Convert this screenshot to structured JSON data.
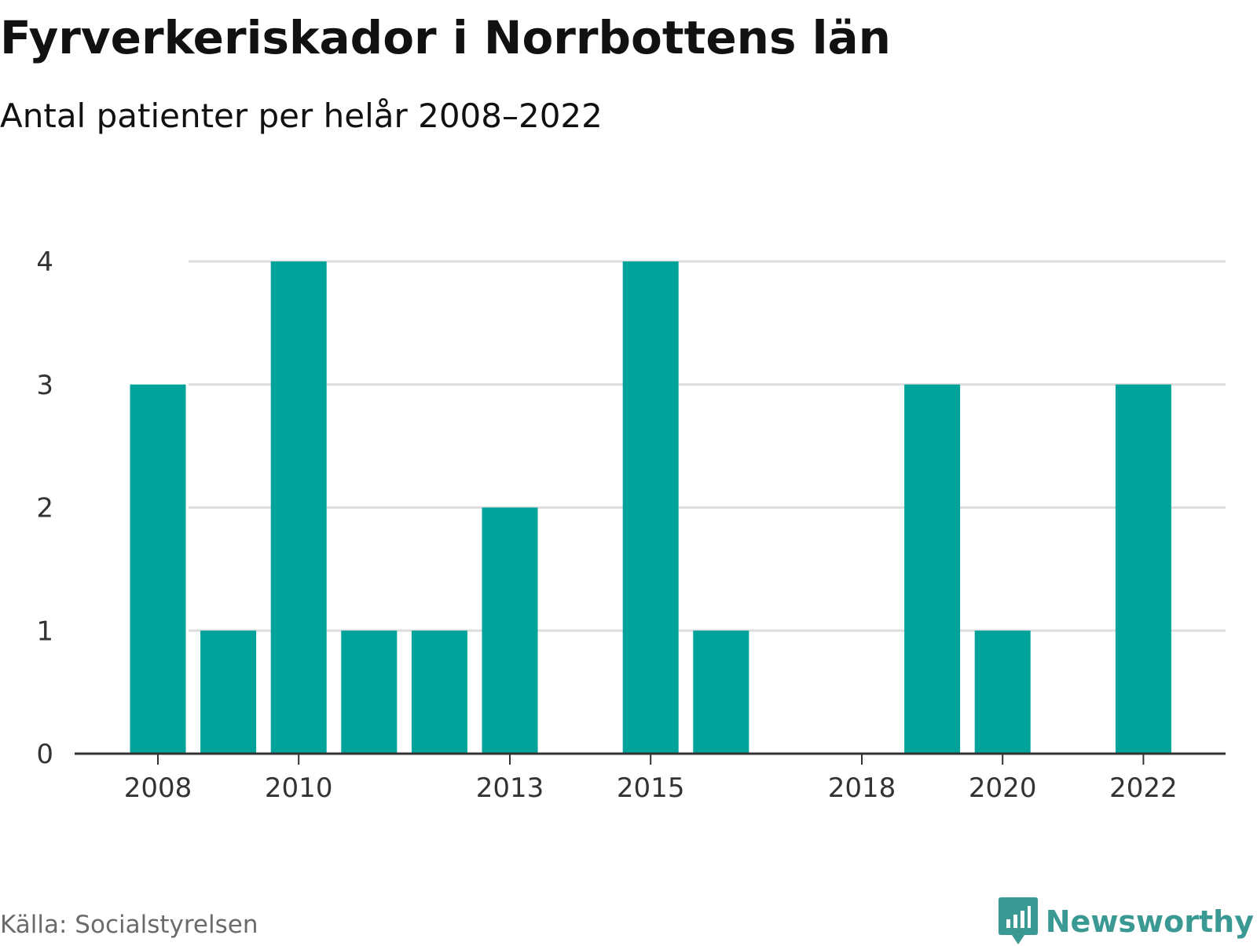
{
  "title": "Fyrverkeriskador i Norrbottens län",
  "subtitle": "Antal patienter per helår 2008–2022",
  "source": "Källa: Socialstyrelsen",
  "logo": {
    "text": "Newsworthy",
    "icon": "bar-chart-speech-bubble-icon"
  },
  "colors": {
    "bar": "#00a39a",
    "grid": "#dddddd",
    "axis": "#333333",
    "tick_text": "#333333",
    "logo": "#3a9a93"
  },
  "chart_data": {
    "type": "bar",
    "categories": [
      "2008",
      "2009",
      "2010",
      "2011",
      "2012",
      "2013",
      "2014",
      "2015",
      "2016",
      "2017",
      "2018",
      "2019",
      "2020",
      "2021",
      "2022"
    ],
    "values": [
      3,
      1,
      4,
      1,
      1,
      2,
      0,
      4,
      1,
      0,
      0,
      3,
      1,
      0,
      3
    ],
    "x_tick_labels": [
      "2008",
      "2010",
      "2013",
      "2015",
      "2018",
      "2020",
      "2022"
    ],
    "y_ticks": [
      0,
      1,
      2,
      3,
      4
    ],
    "ylim": [
      0,
      4
    ],
    "grid": true,
    "xlabel": "",
    "ylabel": ""
  }
}
